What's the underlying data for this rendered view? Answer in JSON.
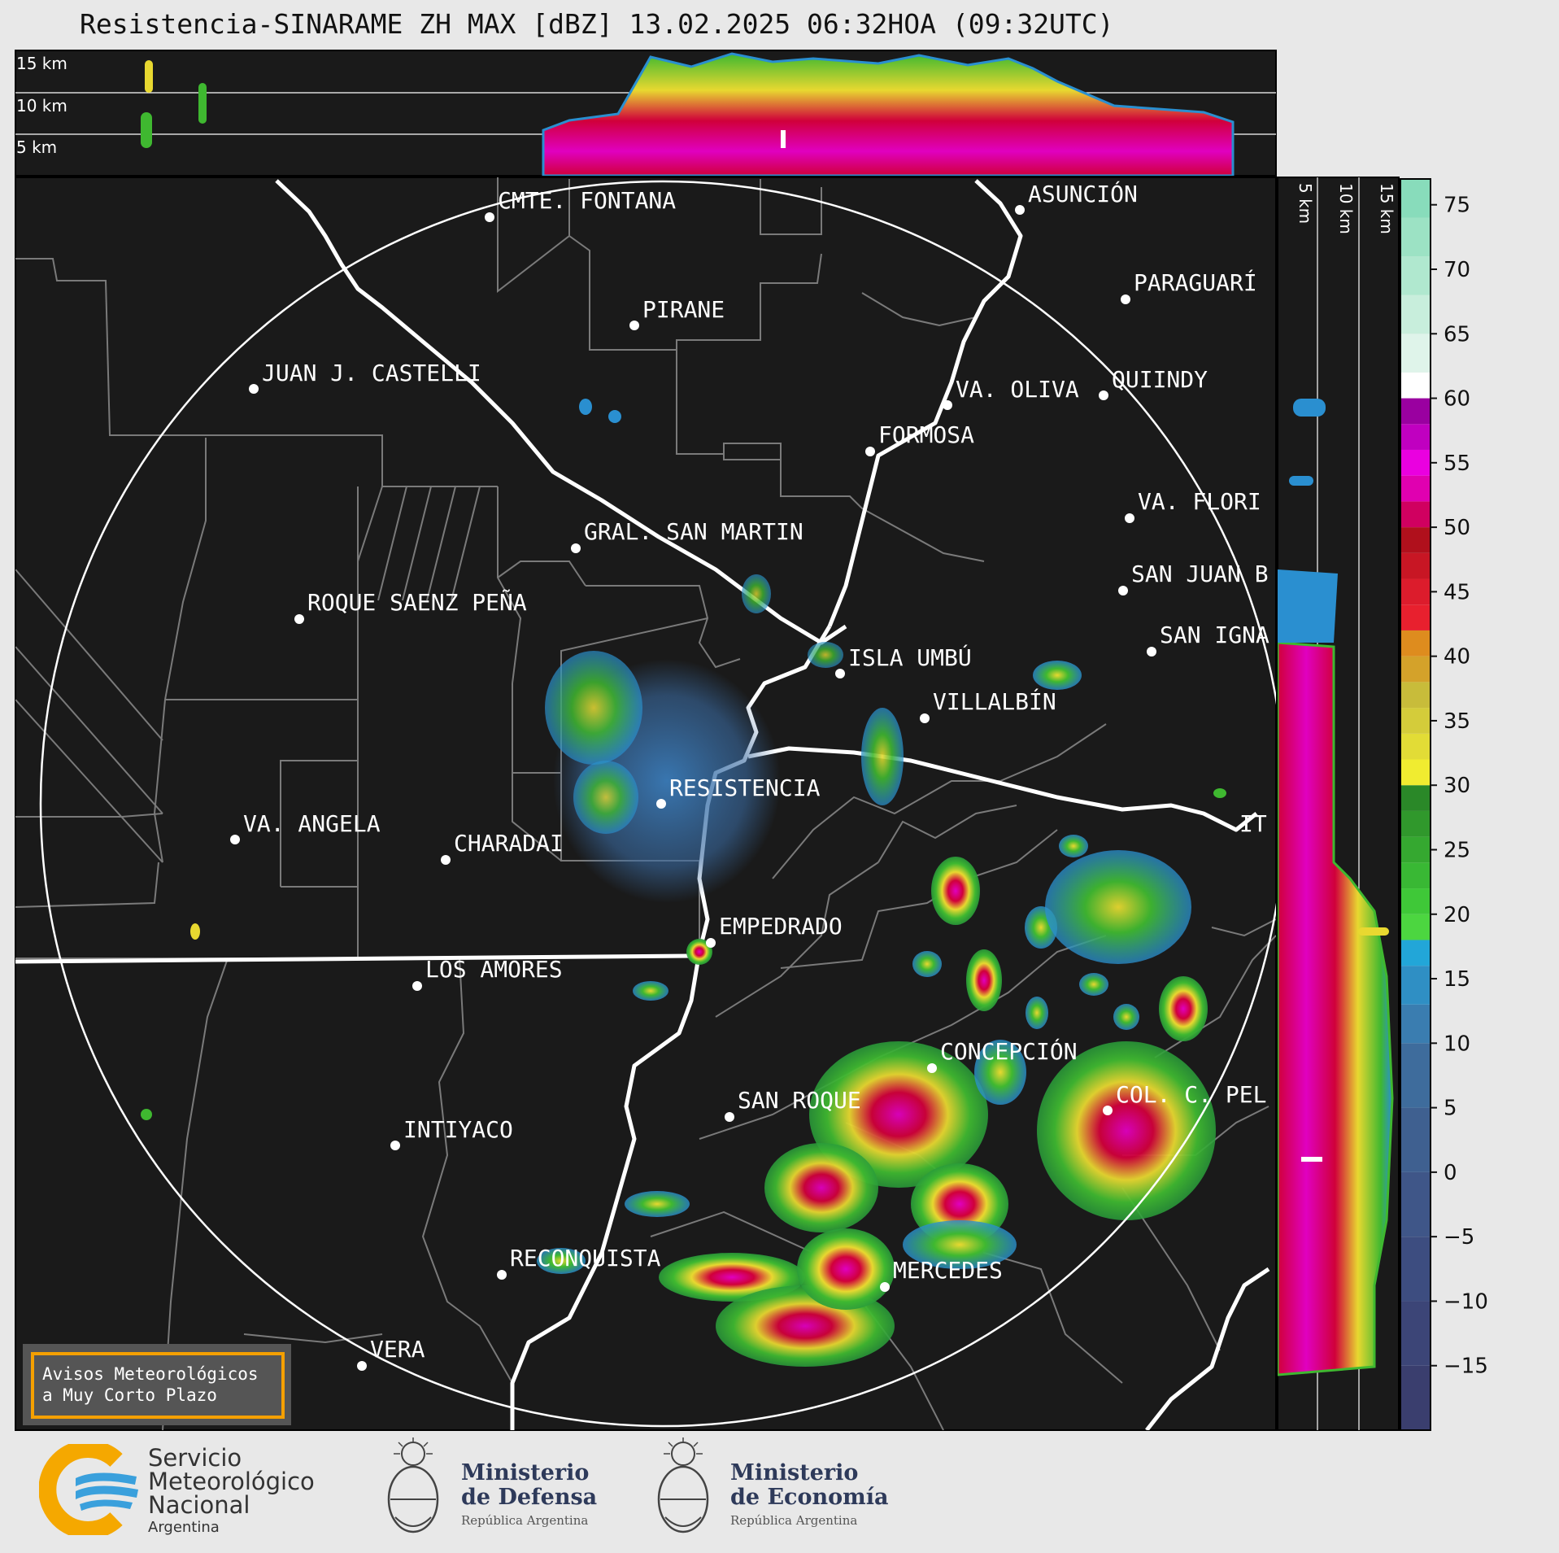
{
  "title": "Resistencia-SINARAME ZH MAX [dBZ] 13.02.2025 06:32HOA (09:32UTC)",
  "height_labels_top": [
    "15 km",
    "10 km",
    "5 km"
  ],
  "height_labels_side": [
    "5 km",
    "10 km",
    "15 km"
  ],
  "colorbar_ticks": [
    "75",
    "70",
    "65",
    "60",
    "55",
    "50",
    "45",
    "40",
    "35",
    "30",
    "25",
    "20",
    "15",
    "10",
    "5",
    "0",
    "−5",
    "−10",
    "−15"
  ],
  "cities": [
    {
      "id": "asuncion",
      "name": "ASUNCIÓN"
    },
    {
      "id": "cmte-fontana",
      "name": "CMTE. FONTANA"
    },
    {
      "id": "paraguari",
      "name": "PARAGUARÍ"
    },
    {
      "id": "pirane",
      "name": "PIRANE"
    },
    {
      "id": "juan-castelli",
      "name": "JUAN J. CASTELLI"
    },
    {
      "id": "va-oliva",
      "name": "VA. OLIVA"
    },
    {
      "id": "quiindy",
      "name": "QUIINDY"
    },
    {
      "id": "formosa",
      "name": "FORMOSA"
    },
    {
      "id": "va-florida",
      "name": "VA. FLORI"
    },
    {
      "id": "gral-san-martin",
      "name": "GRAL. SAN MARTIN"
    },
    {
      "id": "san-juan-b",
      "name": "SAN JUAN B"
    },
    {
      "id": "roque-saenz-pena",
      "name": "ROQUE SAENZ PEÑA"
    },
    {
      "id": "san-ignacio",
      "name": "SAN IGNA"
    },
    {
      "id": "isla-umbu",
      "name": "ISLA UMBÚ"
    },
    {
      "id": "villalbin",
      "name": "VILLALBÍN"
    },
    {
      "id": "resistencia",
      "name": "RESISTENCIA"
    },
    {
      "id": "ita",
      "name": "IT"
    },
    {
      "id": "va-angela",
      "name": "VA. ANGELA"
    },
    {
      "id": "charadai",
      "name": "CHARADAI"
    },
    {
      "id": "empedrado",
      "name": "EMPEDRADO"
    },
    {
      "id": "los-amores",
      "name": "LOS AMORES"
    },
    {
      "id": "concepcion",
      "name": "CONCEPCIÓN"
    },
    {
      "id": "san-roque",
      "name": "SAN ROQUE"
    },
    {
      "id": "col-c-pel",
      "name": "COL. C. PEL"
    },
    {
      "id": "intiyaco",
      "name": "INTIYACO"
    },
    {
      "id": "reconquista",
      "name": "RECONQUISTA"
    },
    {
      "id": "mercedes",
      "name": "MERCEDES"
    },
    {
      "id": "vera",
      "name": "VERA"
    }
  ],
  "warning_box": {
    "line1": "Avisos Meteorológicos",
    "line2": "a Muy Corto Plazo"
  },
  "logos": {
    "smn": {
      "line1": "Servicio",
      "line2": "Meteorológico",
      "line3": "Nacional",
      "line4": "Argentina"
    },
    "defensa": {
      "line1": "Ministerio",
      "line2": "de Defensa",
      "line3": "República Argentina"
    },
    "economia": {
      "line1": "Ministerio",
      "line2": "de Economía",
      "line3": "República Argentina"
    }
  },
  "colors": {
    "map_bg": "#1a1a1a",
    "page_bg": "#e8e8e8",
    "warn_border": "#f5a000",
    "smn_orange": "#f5a800",
    "smn_blue": "#3aa0dc"
  }
}
